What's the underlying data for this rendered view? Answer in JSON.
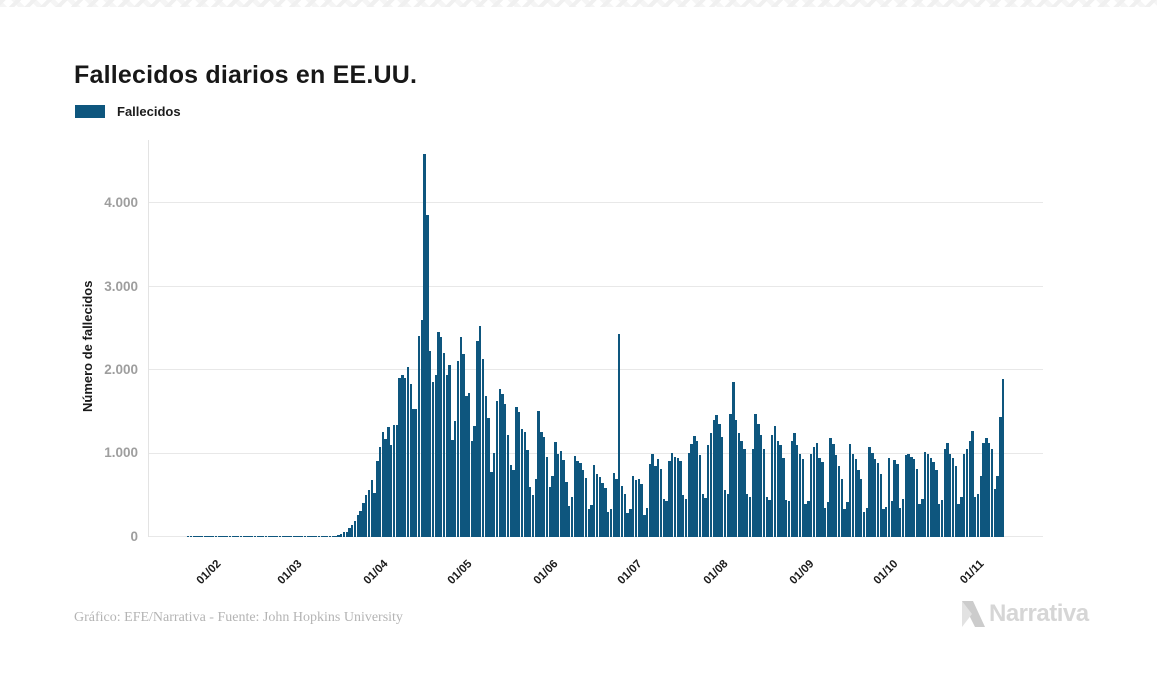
{
  "title": "Fallecidos diarios en EE.UU.",
  "legend": {
    "label": "Fallecidos",
    "color": "#0e567e"
  },
  "y_axis": {
    "title": "Número de fallecidos",
    "ticks": [
      "4.000",
      "3.000",
      "2.000",
      "1.000",
      "0"
    ]
  },
  "x_axis": {
    "ticks": [
      "01/02",
      "01/03",
      "01/04",
      "01/05",
      "01/06",
      "01/07",
      "01/08",
      "01/09",
      "01/10",
      "01/11"
    ]
  },
  "footer": {
    "credit": "Gráfico: EFE/Narrativa - Fuente: John Hopkins University"
  },
  "logo": {
    "text": "Narrativa",
    "mark": "narrativa-n-mark"
  },
  "chart_data": {
    "type": "bar",
    "title": "Fallecidos diarios en EE.UU.",
    "series_name": "Fallecidos",
    "bar_color": "#0e567e",
    "ylabel": "Número de fallecidos",
    "ylim": [
      0,
      4755
    ],
    "y_gridlines": [
      0,
      1000,
      2000,
      3000,
      4000
    ],
    "grid": "horizontal",
    "legend_position": "top-left",
    "x_is_daily_from": "22/01",
    "x_tick_labels": [
      "01/02",
      "01/03",
      "01/04",
      "01/05",
      "01/06",
      "01/07",
      "01/08",
      "01/09",
      "01/10",
      "01/11"
    ],
    "x_tick_day_indices": [
      10,
      39,
      70,
      100,
      131,
      161,
      192,
      223,
      253,
      284
    ],
    "values": [
      0,
      0,
      0,
      0,
      0,
      0,
      0,
      0,
      0,
      0,
      0,
      0,
      0,
      0,
      0,
      0,
      0,
      0,
      0,
      0,
      0,
      0,
      0,
      0,
      0,
      0,
      0,
      0,
      0,
      0,
      0,
      0,
      0,
      0,
      0,
      0,
      0,
      0,
      1,
      1,
      1,
      4,
      3,
      2,
      4,
      3,
      4,
      7,
      4,
      8,
      6,
      10,
      11,
      18,
      23,
      41,
      58,
      63,
      110,
      141,
      186,
      268,
      314,
      413,
      498,
      562,
      683,
      525,
      912,
      1080,
      1260,
      1174,
      1320,
      1104,
      1344,
      1342,
      1906,
      1940,
      1900,
      2035,
      1830,
      1528,
      1535,
      2405,
      2595,
      4591,
      3857,
      2229,
      1855,
      1939,
      2450,
      2400,
      2200,
      1935,
      2065,
      1157,
      1384,
      2110,
      2391,
      2198,
      1691,
      1723,
      1154,
      1324,
      2350,
      2528,
      2129,
      1687,
      1422,
      776,
      1008,
      1630,
      1772,
      1715,
      1595,
      1218,
      865,
      808,
      1552,
      1500,
      1289,
      1260,
      1044,
      605,
      505,
      693,
      1505,
      1263,
      1199,
      960,
      605,
      730,
      1134,
      995,
      1036,
      921,
      659,
      373,
      480,
      975,
      906,
      891,
      802,
      710,
      330,
      380,
      858,
      760,
      722,
      648,
      590,
      295,
      340,
      765,
      700,
      2437,
      611,
      512,
      290,
      335,
      730,
      680,
      700,
      640,
      265,
      350,
      880,
      1000,
      850,
      930,
      820,
      450,
      430,
      910,
      1010,
      955,
      945,
      905,
      500,
      450,
      1005,
      1120,
      1205,
      1150,
      980,
      510,
      470,
      1100,
      1244,
      1403,
      1462,
      1350,
      1200,
      560,
      510,
      1470,
      1862,
      1400,
      1240,
      1150,
      1050,
      510,
      480,
      1050,
      1470,
      1356,
      1220,
      1050,
      480,
      440,
      1220,
      1330,
      1150,
      1100,
      950,
      440,
      430,
      1150,
      1240,
      1100,
      1000,
      930,
      400,
      430,
      1000,
      1080,
      1130,
      950,
      900,
      350,
      420,
      1180,
      1120,
      980,
      850,
      700,
      330,
      420,
      1110,
      1000,
      930,
      800,
      700,
      300,
      350,
      1080,
      1010,
      940,
      890,
      760,
      330,
      360,
      950,
      430,
      920,
      880,
      350,
      450,
      980,
      1000,
      960,
      940,
      820,
      400,
      450,
      1020,
      990,
      950,
      900,
      800,
      390,
      440,
      1050,
      1130,
      1000,
      950,
      850,
      400,
      480,
      1000,
      1060,
      1150,
      1270,
      480,
      510,
      730,
      1130,
      1190,
      1125,
      1060,
      580,
      730,
      1437,
      1893
    ]
  }
}
